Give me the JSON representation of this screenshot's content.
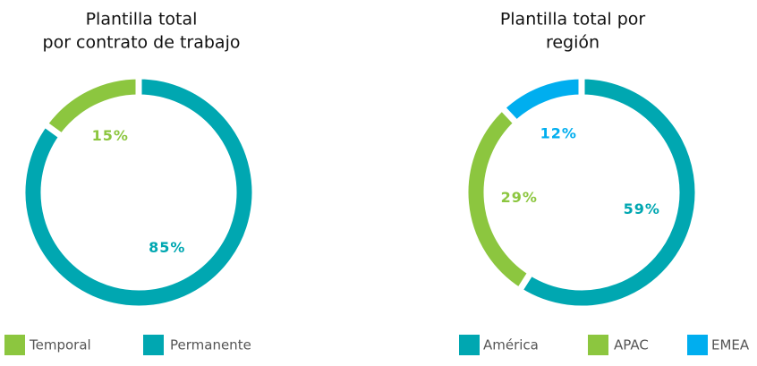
{
  "chart_data": [
    {
      "type": "pie",
      "donut": true,
      "direction": "counterclockwise",
      "title": [
        "Plantilla total",
        "por contrato de trabajo"
      ],
      "categories": [
        "Temporal",
        "Permanente"
      ],
      "values": [
        15,
        85
      ],
      "value_labels": [
        "15%",
        "85%"
      ],
      "colors": [
        "#8cc63f",
        "#00a7b1"
      ],
      "legend": "bottom"
    },
    {
      "type": "pie",
      "donut": true,
      "direction": "clockwise",
      "title": [
        "Plantilla total por",
        "región"
      ],
      "categories": [
        "América",
        "APAC",
        "EMEA"
      ],
      "values": [
        59,
        29,
        12
      ],
      "value_labels": [
        "59%",
        "29%",
        "12%"
      ],
      "colors": [
        "#00a7b1",
        "#8cc63f",
        "#00aeef"
      ],
      "legend": "bottom"
    }
  ]
}
